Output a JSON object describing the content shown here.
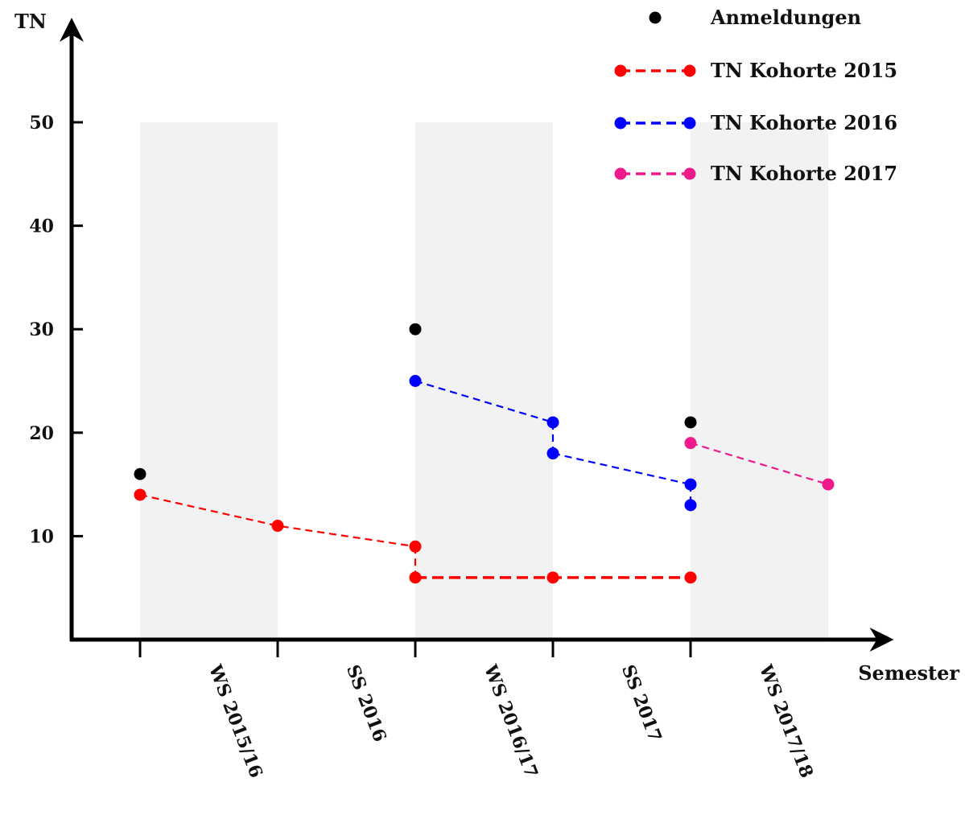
{
  "chart_data": {
    "type": "scatter",
    "ylabel": "TN",
    "xlabel": "Semester",
    "ylim": [
      0,
      55
    ],
    "yticks": [
      10,
      20,
      30,
      40,
      50
    ],
    "x_range": [
      0,
      5.5
    ],
    "categories": [
      "WS 2015/16",
      "SS 2016",
      "WS 2016/17",
      "SS 2017",
      "WS 2017/18"
    ],
    "bands": [
      {
        "x0": 0,
        "x1": 1,
        "y1": 50
      },
      {
        "x0": 2,
        "x1": 3,
        "y1": 50
      },
      {
        "x0": 4,
        "x1": 5,
        "y1": 50
      }
    ],
    "legend_position": "top-right",
    "series": [
      {
        "name": "Anmeldungen",
        "color": "#000000",
        "style": "markers",
        "points": [
          [
            0,
            16
          ],
          [
            2,
            30
          ],
          [
            4,
            21
          ]
        ]
      },
      {
        "name": "TN Kohorte 2015",
        "color": "#ff0000",
        "style": "dashed",
        "segments": [
          [
            [
              0,
              14
            ],
            [
              1,
              11
            ],
            [
              2,
              9
            ]
          ],
          [
            [
              2,
              9
            ],
            [
              2,
              6
            ]
          ],
          [
            [
              2,
              6
            ],
            [
              3,
              6
            ],
            [
              4,
              6
            ]
          ]
        ],
        "points": [
          [
            0,
            14
          ],
          [
            1,
            11
          ],
          [
            2,
            9
          ],
          [
            2,
            6
          ],
          [
            3,
            6
          ],
          [
            4,
            6
          ]
        ]
      },
      {
        "name": "TN Kohorte 2016",
        "color": "#0000ff",
        "style": "dashed",
        "segments": [
          [
            [
              2,
              25
            ],
            [
              3,
              21
            ]
          ],
          [
            [
              3,
              21
            ],
            [
              3,
              18
            ]
          ],
          [
            [
              3,
              18
            ],
            [
              4,
              15
            ]
          ],
          [
            [
              4,
              15
            ],
            [
              4,
              13
            ]
          ]
        ],
        "points": [
          [
            2,
            25
          ],
          [
            3,
            21
          ],
          [
            3,
            18
          ],
          [
            4,
            15
          ],
          [
            4,
            13
          ]
        ]
      },
      {
        "name": "TN Kohorte 2017",
        "color": "#ee1a8c",
        "style": "dashed",
        "segments": [
          [
            [
              4,
              19
            ],
            [
              5,
              15
            ]
          ]
        ],
        "points": [
          [
            4,
            19
          ],
          [
            5,
            15
          ]
        ]
      }
    ]
  }
}
